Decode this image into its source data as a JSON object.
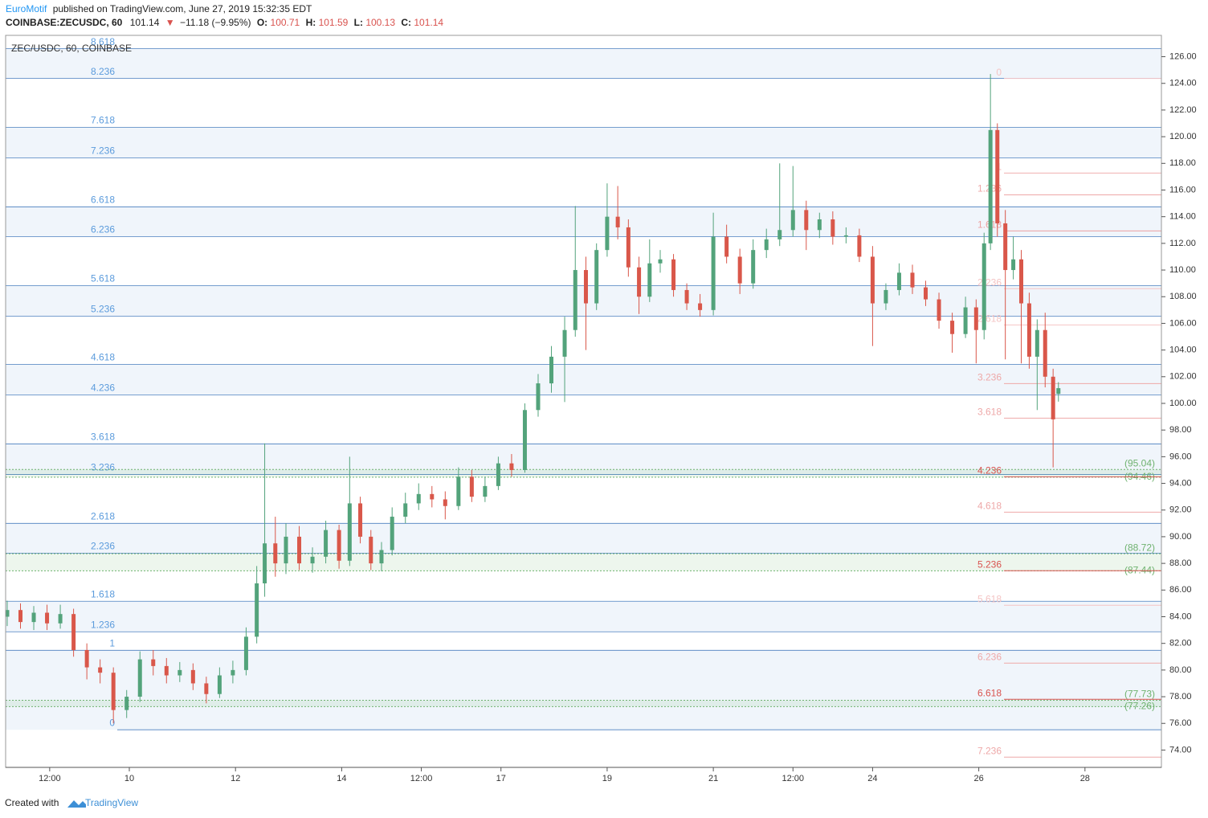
{
  "header": {
    "author": "EuroMotif",
    "published": "published on TradingView.com, June 27, 2019 15:32:35 EDT",
    "symbol": "COINBASE:ZECUSDC, 60",
    "last": "101.14",
    "arrow": "▼",
    "change": "−11.18 (−9.95%)",
    "o_label": "O:",
    "o": "100.71",
    "h_label": "H:",
    "h": "101.59",
    "l_label": "L:",
    "l": "100.13",
    "c_label": "C:",
    "c": "101.14"
  },
  "footer": {
    "created": "Created with",
    "brand": "TradingView"
  },
  "chart_data": {
    "type": "candlestick",
    "title": "ZEC/USDC, 60, COINBASE",
    "up_color": "#53a37b",
    "down_color": "#d9574a",
    "xlim": [
      7.67,
      29.44
    ],
    "ylim": [
      72.7,
      127.6
    ],
    "xticks": [
      {
        "value": 8.5,
        "label": "12:00"
      },
      10,
      12,
      14,
      {
        "value": 15.5,
        "label": "12:00"
      },
      17,
      19,
      21,
      {
        "value": 22.5,
        "label": "12:00"
      },
      24,
      26,
      28
    ],
    "yticks": [
      {
        "value": 74,
        "label": "74.00"
      },
      {
        "value": 76,
        "label": "76.00"
      },
      {
        "value": 78,
        "label": "78.00"
      },
      {
        "value": 80,
        "label": "80.00"
      },
      {
        "value": 82,
        "label": "82.00"
      },
      {
        "value": 84,
        "label": "84.00"
      },
      {
        "value": 86,
        "label": "86.00"
      },
      {
        "value": 88,
        "label": "88.00"
      },
      {
        "value": 90,
        "label": "90.00"
      },
      {
        "value": 92,
        "label": "92.00"
      },
      {
        "value": 94,
        "label": "94.00"
      },
      {
        "value": 96,
        "label": "96.00"
      },
      {
        "value": 98,
        "label": "98.00"
      },
      {
        "value": 100,
        "label": "100.00"
      },
      {
        "value": 102,
        "label": "102.00"
      },
      {
        "value": 104,
        "label": "104.00"
      },
      {
        "value": 106,
        "label": "106.00"
      },
      {
        "value": 108,
        "label": "108.00"
      },
      {
        "value": 110,
        "label": "110.00"
      },
      {
        "value": 112,
        "label": "112.00"
      },
      {
        "value": 114,
        "label": "114.00"
      },
      {
        "value": 116,
        "label": "116.00"
      },
      {
        "value": 118,
        "label": "118.00"
      },
      {
        "value": 120,
        "label": "120.00"
      },
      {
        "value": 122,
        "label": "122.00"
      },
      {
        "value": 124,
        "label": "124.00"
      },
      {
        "value": 126,
        "label": "126.00"
      }
    ],
    "x": [
      7.7,
      7.95,
      8.2,
      8.45,
      8.7,
      8.95,
      9.2,
      9.45,
      9.7,
      9.95,
      10.2,
      10.45,
      10.7,
      10.95,
      11.2,
      11.45,
      11.7,
      11.95,
      12.2,
      12.4,
      12.55,
      12.75,
      12.95,
      13.2,
      13.45,
      13.7,
      13.95,
      14.15,
      14.35,
      14.55,
      14.75,
      14.95,
      15.2,
      15.45,
      15.7,
      15.95,
      16.2,
      16.45,
      16.7,
      16.95,
      17.2,
      17.45,
      17.7,
      17.95,
      18.2,
      18.4,
      18.6,
      18.8,
      19.0,
      19.2,
      19.4,
      19.6,
      19.8,
      20.0,
      20.25,
      20.5,
      20.75,
      21.0,
      21.25,
      21.5,
      21.75,
      22.0,
      22.25,
      22.5,
      22.75,
      23.0,
      23.25,
      23.5,
      23.75,
      24.0,
      24.25,
      24.5,
      24.75,
      25.0,
      25.25,
      25.5,
      25.75,
      25.95,
      26.1,
      26.22,
      26.35,
      26.5,
      26.65,
      26.8,
      26.95,
      27.1,
      27.25,
      27.4,
      27.5
    ],
    "open": [
      84.0,
      84.5,
      83.6,
      84.3,
      83.5,
      84.2,
      81.5,
      80.2,
      79.8,
      77.0,
      78.0,
      80.8,
      80.3,
      79.6,
      80.0,
      79.0,
      78.2,
      79.6,
      80.0,
      82.5,
      86.5,
      89.5,
      88.0,
      90.0,
      88.0,
      88.5,
      90.5,
      88.2,
      92.5,
      90.0,
      88.0,
      89.0,
      91.5,
      92.5,
      93.2,
      92.8,
      92.3,
      94.5,
      93.0,
      93.8,
      95.5,
      95.0,
      99.5,
      101.5,
      103.5,
      105.5,
      110.0,
      107.5,
      111.5,
      114.0,
      113.2,
      110.2,
      108.0,
      110.5,
      110.8,
      108.5,
      107.5,
      107.0,
      112.5,
      111.0,
      109.0,
      111.5,
      112.3,
      113.0,
      114.5,
      113.0,
      113.8,
      112.5,
      112.6,
      111.0,
      107.5,
      108.5,
      109.8,
      108.7,
      107.8,
      106.2,
      105.2,
      107.2,
      105.5,
      112.0,
      120.5,
      113.5,
      110.0,
      110.8,
      107.5,
      103.5,
      105.5,
      102.0,
      100.71
    ],
    "high": [
      85.2,
      85.0,
      84.8,
      84.9,
      84.9,
      84.6,
      82.0,
      80.8,
      80.2,
      78.5,
      81.4,
      81.5,
      80.9,
      80.6,
      80.5,
      79.5,
      80.2,
      80.7,
      83.2,
      87.8,
      97.0,
      91.5,
      91.0,
      90.8,
      89.2,
      91.2,
      90.9,
      96.0,
      93.0,
      90.5,
      89.6,
      92.2,
      93.3,
      94.0,
      93.8,
      93.4,
      95.2,
      95.0,
      94.5,
      96.0,
      96.2,
      100.0,
      102.2,
      104.3,
      106.5,
      114.8,
      111.0,
      112.0,
      116.5,
      116.3,
      113.8,
      111.0,
      112.3,
      111.5,
      111.2,
      109.0,
      108.2,
      114.3,
      113.4,
      111.6,
      112.3,
      113.1,
      118.0,
      117.8,
      115.2,
      114.3,
      114.4,
      113.2,
      113.1,
      111.8,
      109.0,
      110.5,
      110.4,
      109.2,
      108.3,
      106.8,
      108.0,
      107.8,
      112.8,
      124.7,
      121.0,
      114.5,
      112.5,
      111.5,
      108.3,
      106.3,
      106.8,
      102.6,
      101.59
    ],
    "low": [
      83.3,
      83.1,
      83.0,
      83.0,
      83.1,
      81.0,
      79.3,
      79.0,
      76.0,
      76.4,
      77.6,
      79.6,
      79.0,
      79.1,
      78.5,
      77.5,
      77.9,
      79.0,
      79.6,
      82.0,
      85.5,
      87.0,
      87.2,
      87.5,
      87.3,
      88.0,
      87.6,
      87.8,
      89.5,
      87.5,
      87.4,
      88.6,
      91.0,
      92.0,
      92.2,
      91.3,
      92.0,
      92.6,
      92.6,
      93.5,
      94.5,
      94.8,
      99.0,
      100.8,
      100.1,
      105.0,
      104.0,
      107.0,
      111.0,
      112.3,
      109.5,
      106.7,
      107.6,
      109.8,
      108.0,
      107.0,
      106.5,
      106.6,
      110.5,
      108.2,
      108.6,
      110.9,
      111.8,
      112.5,
      111.5,
      112.4,
      111.9,
      112.0,
      110.6,
      104.3,
      107.0,
      108.1,
      108.2,
      107.3,
      105.6,
      103.8,
      104.9,
      103.0,
      104.8,
      111.5,
      112.5,
      103.3,
      109.3,
      103.0,
      102.6,
      99.5,
      101.2,
      95.2,
      100.13
    ],
    "close": [
      84.5,
      83.6,
      84.3,
      83.5,
      84.2,
      81.5,
      80.2,
      79.8,
      77.0,
      78.0,
      80.8,
      80.3,
      79.6,
      80.0,
      79.0,
      78.2,
      79.6,
      80.0,
      82.5,
      86.5,
      89.5,
      88.0,
      90.0,
      88.0,
      88.5,
      90.5,
      88.2,
      92.5,
      90.0,
      88.0,
      89.0,
      91.5,
      92.5,
      93.2,
      92.8,
      92.3,
      94.5,
      93.0,
      93.8,
      95.5,
      95.0,
      99.5,
      101.5,
      103.5,
      105.5,
      110.0,
      107.5,
      111.5,
      114.0,
      113.2,
      110.2,
      108.0,
      110.5,
      110.8,
      108.5,
      107.5,
      107.0,
      112.5,
      111.0,
      109.0,
      111.5,
      112.3,
      113.0,
      114.5,
      113.0,
      113.8,
      112.5,
      112.6,
      111.0,
      107.5,
      108.5,
      109.8,
      108.7,
      107.8,
      106.2,
      105.2,
      107.2,
      105.5,
      112.0,
      120.5,
      113.5,
      110.0,
      110.8,
      107.5,
      103.5,
      105.5,
      102.0,
      98.8,
      101.14
    ],
    "fib_left": {
      "color": "#4a7fbf",
      "label_color": "#5b9bdc",
      "levels": [
        {
          "label": "0",
          "value": 75.52
        },
        {
          "label": "1",
          "value": 81.48
        },
        {
          "label": "1.236",
          "value": 82.87
        },
        {
          "label": "1.618",
          "value": 85.16
        },
        {
          "label": "2.236",
          "value": 88.77
        },
        {
          "label": "2.618",
          "value": 91.0
        },
        {
          "label": "3.236",
          "value": 94.67
        },
        {
          "label": "3.618",
          "value": 96.96
        },
        {
          "label": "4.236",
          "value": 100.64
        },
        {
          "label": "4.618",
          "value": 102.93
        },
        {
          "label": "5.236",
          "value": 106.54
        },
        {
          "label": "5.618",
          "value": 108.83
        },
        {
          "label": "6.236",
          "value": 112.51
        },
        {
          "label": "6.618",
          "value": 114.73
        },
        {
          "label": "7.236",
          "value": 118.41
        },
        {
          "label": "7.618",
          "value": 120.7
        },
        {
          "label": "8.236",
          "value": 124.37
        },
        {
          "label": "8.618",
          "value": 126.6
        }
      ]
    },
    "fib_right": {
      "levels": [
        {
          "label": "0",
          "value": 124.37,
          "color": "#f4c4c4"
        },
        {
          "label": "1",
          "value": 117.27,
          "color": "#f0b0b0"
        },
        {
          "label": "1.236",
          "value": 115.64,
          "color": "#eea8a8"
        },
        {
          "label": "1.618",
          "value": 112.93,
          "color": "#eca0a0"
        },
        {
          "label": "2.236",
          "value": 108.6,
          "color": "#f4c4c4"
        },
        {
          "label": "2.618",
          "value": 105.88,
          "color": "#f4c4c4"
        },
        {
          "label": "3.236",
          "value": 101.48,
          "color": "#eea8a8"
        },
        {
          "label": "3.618",
          "value": 98.89,
          "color": "#eea8a8"
        },
        {
          "label": "4.236",
          "value": 94.49,
          "color": "#d9534f"
        },
        {
          "label": "4.618",
          "value": 91.84,
          "color": "#eea8a8"
        },
        {
          "label": "5.236",
          "value": 87.45,
          "color": "#d9534f"
        },
        {
          "label": "5.618",
          "value": 84.86,
          "color": "#f4c4c4"
        },
        {
          "label": "6.236",
          "value": 80.52,
          "color": "#eea8a8"
        },
        {
          "label": "6.618",
          "value": 77.81,
          "color": "#d9534f"
        },
        {
          "label": "7.236",
          "value": 73.47,
          "color": "#eea8a8"
        }
      ]
    },
    "zones": {
      "color": "#6fb26f",
      "items": [
        {
          "top": {
            "value": 95.04,
            "label": "(95.04)"
          },
          "bottom": {
            "value": 94.46,
            "label": "(94.46)"
          }
        },
        {
          "top": {
            "value": 88.72,
            "label": "(88.72)"
          },
          "bottom": {
            "value": 87.44,
            "label": "(87.44)"
          }
        },
        {
          "top": {
            "value": 77.73,
            "label": "(77.73)"
          },
          "bottom": {
            "value": 77.26,
            "label": "(77.26)"
          }
        }
      ]
    }
  }
}
